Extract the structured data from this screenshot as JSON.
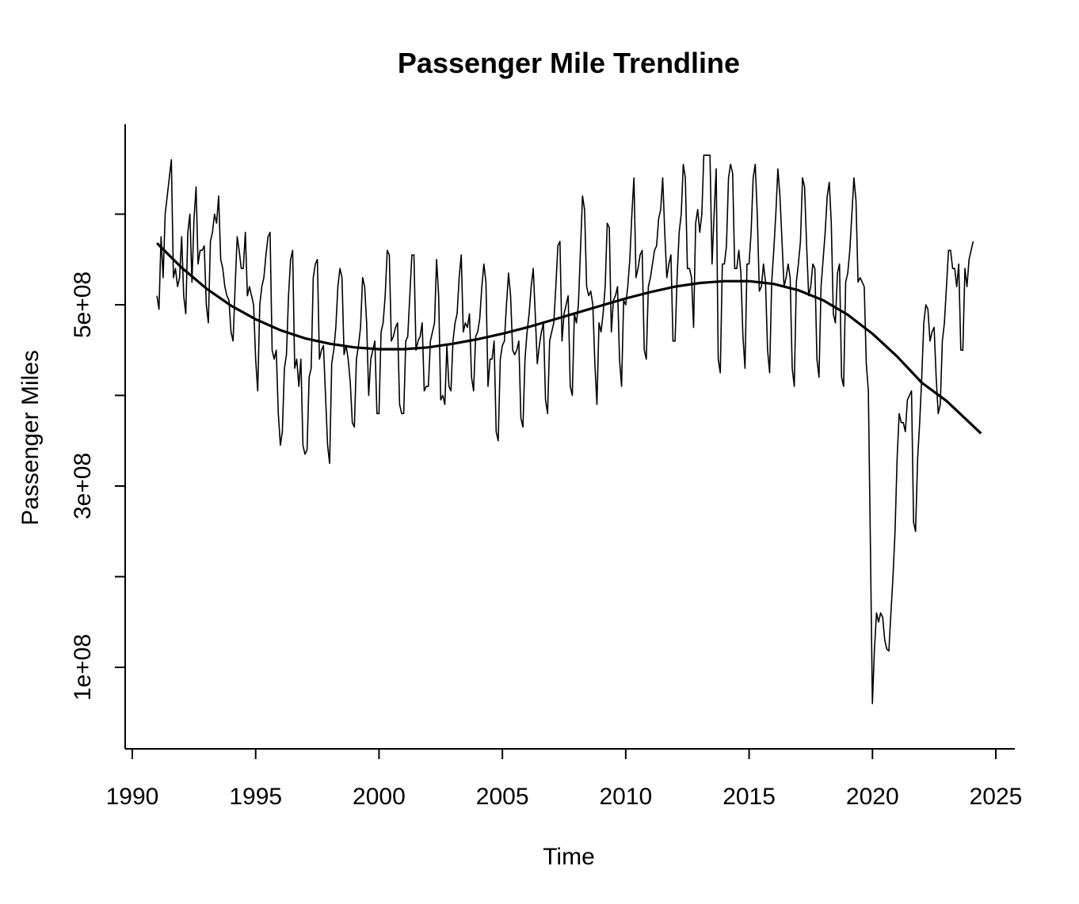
{
  "chart_data": {
    "type": "line",
    "title": "Passenger Mile Trendline",
    "xlabel": "Time",
    "ylabel": "Passenger Miles",
    "xlim": [
      1990,
      2025
    ],
    "ylim": [
      0,
      700000000
    ],
    "x_ticks": [
      1990,
      1995,
      2000,
      2005,
      2010,
      2015,
      2020,
      2025
    ],
    "x_tick_labels": [
      "1990",
      "1995",
      "2000",
      "2005",
      "2010",
      "2015",
      "2020",
      "2025"
    ],
    "y_ticks": [
      100000000,
      200000000,
      300000000,
      400000000,
      500000000,
      600000000
    ],
    "y_tick_labels": [
      "1e+08",
      "",
      "3e+08",
      "",
      "5e+08",
      ""
    ],
    "grid": false,
    "series": [
      {
        "style": "thin",
        "x_start": 1991.0,
        "x_step": 0.08333,
        "values_million": [
          [
            510,
            495,
            575,
            530,
            600,
            620,
            640,
            660,
            530,
            540,
            520,
            530
          ],
          [
            575,
            510,
            490,
            580,
            600,
            525,
            595,
            630,
            545,
            560,
            560,
            565
          ],
          [
            500,
            480,
            570,
            580,
            600,
            590,
            620,
            550,
            540,
            520,
            510,
            505
          ],
          [
            470,
            460,
            520,
            575,
            560,
            540,
            540,
            580,
            510,
            520,
            510,
            500
          ],
          [
            440,
            405,
            500,
            520,
            530,
            555,
            575,
            580,
            450,
            440,
            450,
            380
          ],
          [
            345,
            360,
            430,
            445,
            510,
            550,
            560,
            430,
            440,
            410,
            440,
            345
          ],
          [
            335,
            340,
            420,
            430,
            530,
            545,
            550,
            440,
            450,
            455,
            400,
            345
          ],
          [
            325,
            435,
            450,
            475,
            520,
            540,
            530,
            445,
            455,
            440,
            415,
            370
          ],
          [
            365,
            440,
            455,
            475,
            530,
            520,
            480,
            400,
            440,
            450,
            460,
            380
          ],
          [
            380,
            470,
            480,
            510,
            560,
            555,
            460,
            465,
            475,
            480,
            390,
            380
          ],
          [
            380,
            460,
            465,
            510,
            555,
            555,
            450,
            460,
            465,
            480,
            405,
            410
          ],
          [
            410,
            460,
            470,
            480,
            550,
            510,
            395,
            400,
            390,
            455,
            410,
            405
          ],
          [
            460,
            480,
            490,
            530,
            555,
            470,
            480,
            475,
            490,
            420,
            405,
            465
          ],
          [
            470,
            485,
            520,
            545,
            525,
            410,
            440,
            440,
            460,
            360,
            350,
            440
          ],
          [
            455,
            460,
            500,
            535,
            510,
            450,
            445,
            450,
            460,
            375,
            365,
            440
          ],
          [
            470,
            490,
            520,
            540,
            490,
            435,
            455,
            470,
            480,
            395,
            380,
            460
          ],
          [
            470,
            480,
            520,
            565,
            570,
            460,
            490,
            500,
            510,
            410,
            400,
            490
          ],
          [
            480,
            500,
            560,
            620,
            605,
            520,
            510,
            515,
            500,
            435,
            390,
            480
          ],
          [
            470,
            490,
            520,
            590,
            585,
            470,
            505,
            510,
            520,
            440,
            410,
            505
          ],
          [
            500,
            520,
            550,
            600,
            640,
            530,
            540,
            555,
            560,
            450,
            440,
            520
          ],
          [
            530,
            545,
            560,
            565,
            595,
            605,
            640,
            580,
            530,
            545,
            555,
            460
          ],
          [
            460,
            530,
            580,
            600,
            655,
            640,
            540,
            540,
            530,
            475,
            590,
            605
          ],
          [
            580,
            600,
            665,
            665,
            665,
            665,
            545,
            600,
            650,
            440,
            425,
            545
          ],
          [
            545,
            565,
            640,
            655,
            645,
            540,
            540,
            560,
            535,
            465,
            430,
            545
          ],
          [
            545,
            580,
            640,
            655,
            600,
            515,
            520,
            545,
            525,
            450,
            425,
            525
          ],
          [
            560,
            600,
            650,
            620,
            570,
            520,
            530,
            545,
            530,
            430,
            410,
            525
          ],
          [
            545,
            570,
            640,
            630,
            565,
            510,
            520,
            545,
            540,
            440,
            420,
            520
          ],
          [
            550,
            580,
            620,
            635,
            590,
            490,
            480,
            535,
            545,
            420,
            410,
            525
          ],
          [
            535,
            560,
            600,
            640,
            615,
            525,
            530,
            525,
            520,
            435,
            405
          ],
          [
            235,
            60,
            120,
            160,
            150,
            160,
            155,
            130,
            120,
            118,
            160,
            200
          ],
          [
            250,
            330,
            380,
            370,
            370,
            360,
            395,
            400,
            405,
            260,
            250,
            330
          ],
          [
            370,
            420,
            480,
            500,
            495,
            460,
            470,
            475,
            420,
            380,
            390,
            460
          ],
          [
            480,
            520,
            560,
            560,
            540,
            540,
            520,
            545,
            450,
            450,
            540,
            520
          ],
          [
            550,
            560,
            570
          ]
        ]
      },
      {
        "style": "thick",
        "x": [
          1991.0,
          1992.0,
          1993.0,
          1994.0,
          1995.0,
          1996.0,
          1997.0,
          1998.0,
          1999.0,
          2000.0,
          2001.0,
          2002.0,
          2003.0,
          2004.0,
          2005.0,
          2006.0,
          2007.0,
          2008.0,
          2009.0,
          2010.0,
          2011.0,
          2012.0,
          2013.0,
          2014.0,
          2015.0,
          2016.0,
          2017.0,
          2018.0,
          2019.0,
          2020.0,
          2021.0,
          2022.0,
          2023.0,
          2024.4
        ],
        "values_million": [
          568,
          541,
          518,
          499,
          484,
          472,
          463,
          457,
          453,
          451,
          451,
          453,
          457,
          462,
          468,
          475,
          483,
          491,
          499,
          507,
          514,
          520,
          524,
          526,
          526,
          523,
          516,
          505,
          489,
          468,
          443,
          414,
          394,
          358
        ]
      }
    ]
  }
}
